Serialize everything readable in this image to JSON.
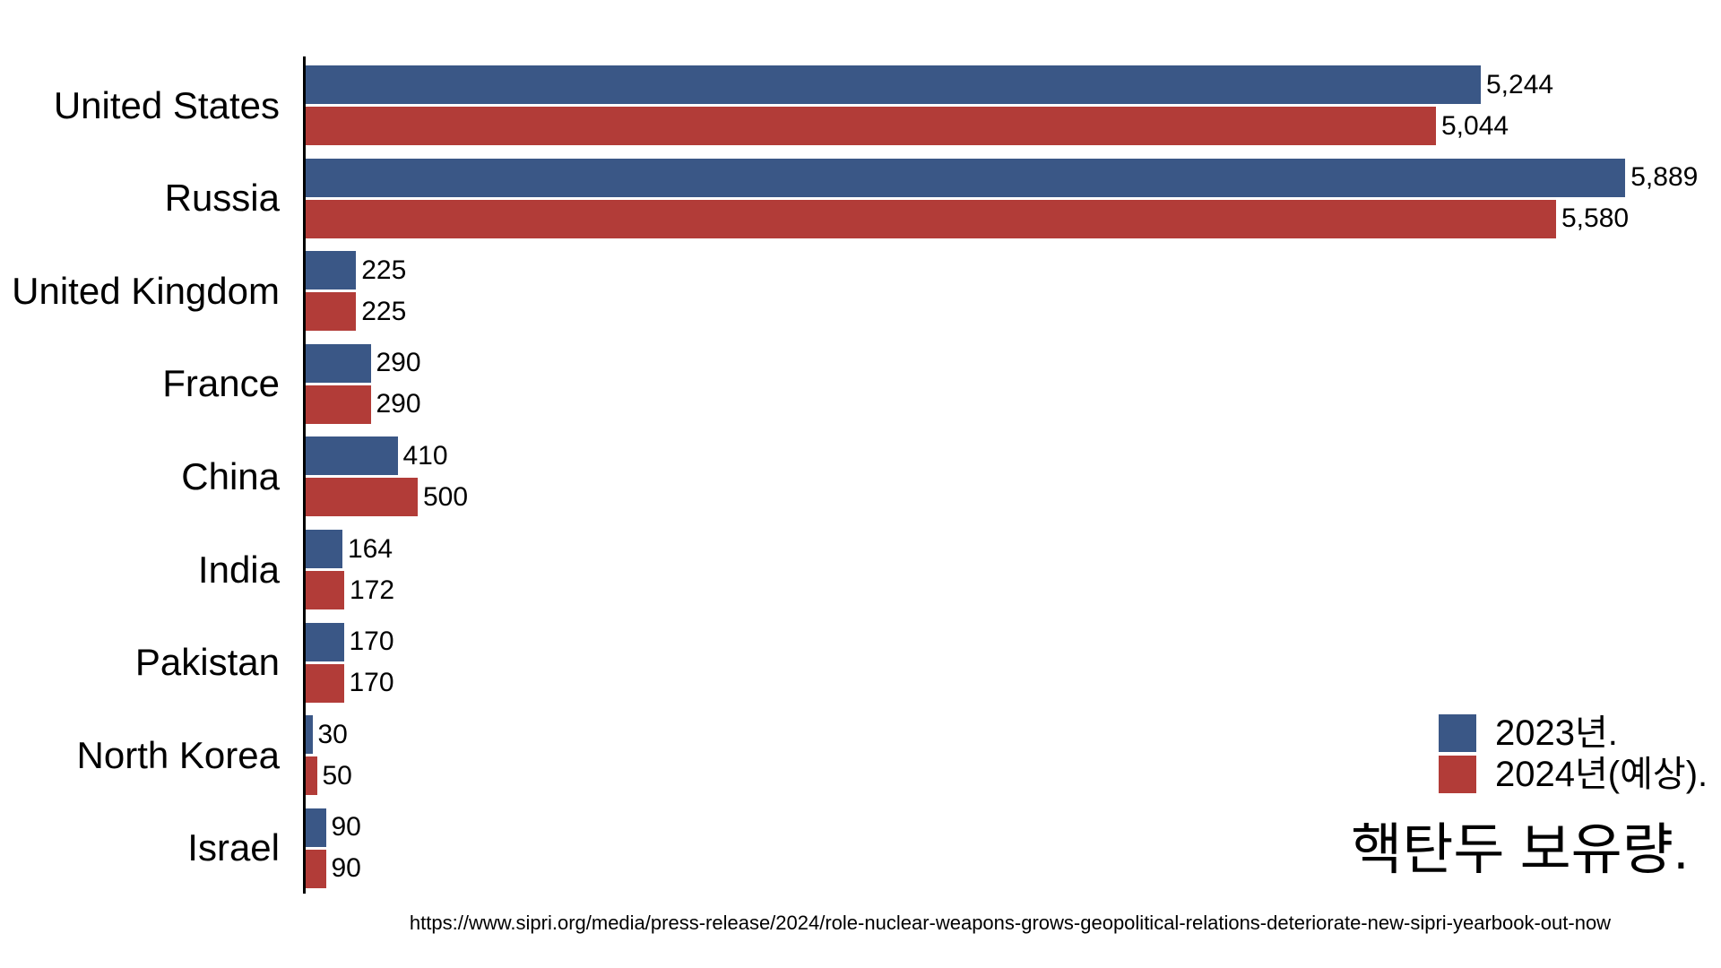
{
  "chart_data": {
    "type": "bar",
    "orientation": "horizontal",
    "title": "핵탄두 보유량.",
    "categories": [
      "United States",
      "Russia",
      "United Kingdom",
      "France",
      "China",
      "India",
      "Pakistan",
      "North Korea",
      "Israel"
    ],
    "series": [
      {
        "name": "2023년.",
        "color": "#3A5786",
        "values": [
          5244,
          5889,
          225,
          290,
          410,
          164,
          170,
          30,
          90
        ],
        "labels": [
          "5,244",
          "5,889",
          "225",
          "290",
          "410",
          "164",
          "170",
          "30",
          "90"
        ]
      },
      {
        "name": "2024년(예상).",
        "color": "#B23C38",
        "values": [
          5044,
          5580,
          225,
          290,
          500,
          172,
          170,
          50,
          90
        ],
        "labels": [
          "5,044",
          "5,580",
          "225",
          "290",
          "500",
          "172",
          "170",
          "50",
          "90"
        ]
      }
    ],
    "xlim": [
      0,
      5889
    ],
    "grid": false,
    "legend_position": "bottom-right",
    "value_labels_shown": true
  },
  "legend": {
    "items": [
      {
        "label": "2023년.",
        "color": "#3A5786"
      },
      {
        "label": "2024년(예상).",
        "color": "#B23C38"
      }
    ]
  },
  "footer": {
    "source_url": "https://www.sipri.org/media/press-release/2024/role-nuclear-weapons-grows-geopolitical-relations-deteriorate-new-sipri-yearbook-out-now"
  }
}
